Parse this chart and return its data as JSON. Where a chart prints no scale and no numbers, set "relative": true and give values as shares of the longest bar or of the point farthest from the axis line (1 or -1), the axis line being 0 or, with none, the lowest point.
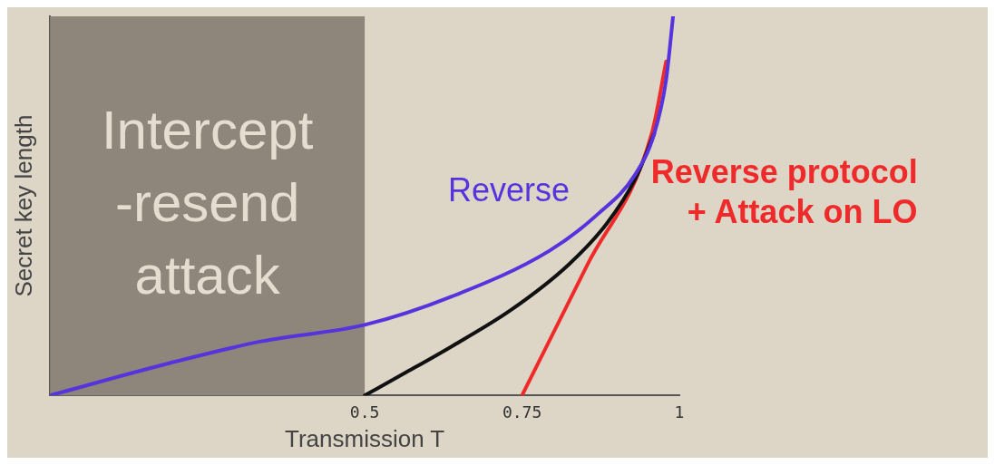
{
  "chart_data": {
    "type": "line",
    "xlabel": "Transmission T",
    "ylabel": "Secret key length",
    "relative": true,
    "xlim": [
      0,
      1
    ],
    "xticks": [
      0.5,
      0.75,
      1
    ],
    "grid": false,
    "legend": false,
    "marker": "none",
    "line_style": "solid",
    "bands": [
      {
        "axis": "x",
        "from": 0,
        "to": 0.5,
        "label": "Intercept -resend attack",
        "color": "#8f867b"
      }
    ],
    "series": [
      {
        "name": "Reverse",
        "color": "#5533dd",
        "x": [
          0,
          0.185,
          0.337,
          0.5,
          0.64,
          0.793,
          0.869,
          0.93,
          0.96,
          0.979,
          0.99
        ],
        "values": [
          0,
          0.083,
          0.143,
          0.186,
          0.262,
          0.381,
          0.476,
          0.583,
          0.69,
          0.833,
          1
        ]
      },
      {
        "color": "#111111",
        "x": [
          0.5,
          0.565,
          0.64,
          0.733,
          0.824,
          0.884,
          0.93,
          0.96
        ],
        "values": [
          0,
          0.06,
          0.131,
          0.226,
          0.345,
          0.452,
          0.571,
          0.69
        ]
      },
      {
        "name": "Reverse protocol + Attack on LO",
        "color": "#ee2a2a",
        "x": [
          0.75,
          0.854,
          0.956,
          0.979
        ],
        "values": [
          0,
          0.345,
          0.69,
          0.881
        ]
      }
    ]
  }
}
